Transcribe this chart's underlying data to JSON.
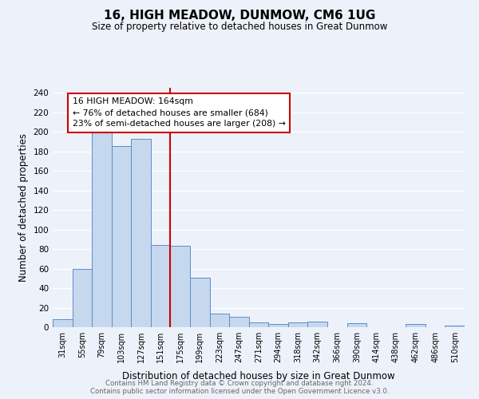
{
  "title": "16, HIGH MEADOW, DUNMOW, CM6 1UG",
  "subtitle": "Size of property relative to detached houses in Great Dunmow",
  "xlabel": "Distribution of detached houses by size in Great Dunmow",
  "ylabel": "Number of detached properties",
  "bar_labels": [
    "31sqm",
    "55sqm",
    "79sqm",
    "103sqm",
    "127sqm",
    "151sqm",
    "175sqm",
    "199sqm",
    "223sqm",
    "247sqm",
    "271sqm",
    "294sqm",
    "318sqm",
    "342sqm",
    "366sqm",
    "390sqm",
    "414sqm",
    "438sqm",
    "462sqm",
    "486sqm",
    "510sqm"
  ],
  "bar_heights": [
    8,
    60,
    201,
    185,
    193,
    84,
    83,
    51,
    14,
    11,
    5,
    3,
    5,
    6,
    0,
    4,
    0,
    0,
    3,
    0,
    2
  ],
  "bar_color": "#c5d8ee",
  "bar_edge_color": "#5b8dc8",
  "vline_x": 5.5,
  "vline_color": "#cc0000",
  "annotation_title": "16 HIGH MEADOW: 164sqm",
  "annotation_line1": "← 76% of detached houses are smaller (684)",
  "annotation_line2": "23% of semi-detached houses are larger (208) →",
  "annotation_box_color": "#cc0000",
  "ylim": [
    0,
    245
  ],
  "yticks": [
    0,
    20,
    40,
    60,
    80,
    100,
    120,
    140,
    160,
    180,
    200,
    220,
    240
  ],
  "footer1": "Contains HM Land Registry data © Crown copyright and database right 2024.",
  "footer2": "Contains public sector information licensed under the Open Government Licence v3.0.",
  "background_color": "#edf2fa"
}
